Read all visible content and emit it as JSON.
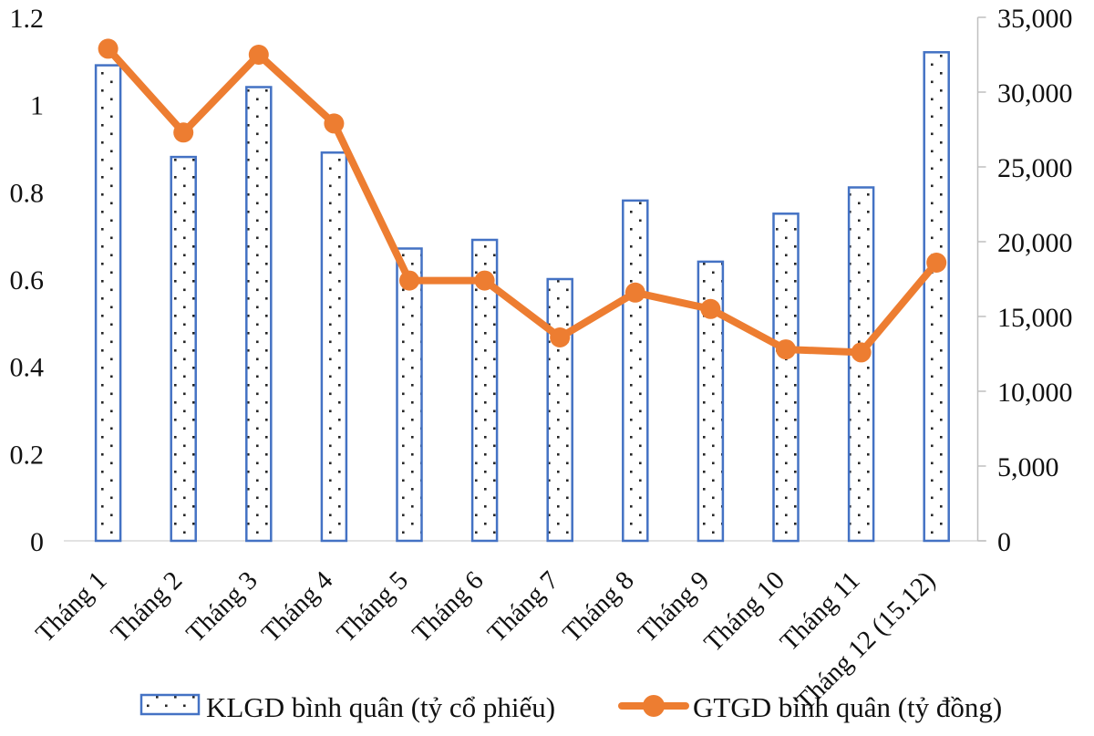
{
  "chart_data": {
    "type": "bar+line",
    "categories": [
      "Tháng 1",
      "Tháng 2",
      "Tháng 3",
      "Tháng 4",
      "Tháng 5",
      "Tháng 6",
      "Tháng 7",
      "Tháng 8",
      "Tháng 9",
      "Tháng 10",
      "Tháng 11",
      "Tháng 12 (15.12)"
    ],
    "series": [
      {
        "name": "KLGD bình quân (tỷ cổ phiếu)",
        "type": "bar",
        "axis": "left",
        "values": [
          1.09,
          0.88,
          1.04,
          0.89,
          0.67,
          0.69,
          0.6,
          0.78,
          0.64,
          0.75,
          0.81,
          1.12
        ]
      },
      {
        "name": "GTGD bình quân (tỷ đồng)",
        "type": "line",
        "axis": "right",
        "values": [
          32900,
          27300,
          32500,
          27900,
          17400,
          17400,
          13600,
          16600,
          15500,
          12800,
          12600,
          18600
        ]
      }
    ],
    "left_axis": {
      "min": 0,
      "max": 1.2,
      "ticks_top_to_bottom": [
        "1.2",
        "1",
        "0.8",
        "0.6",
        "0.4",
        "0.2",
        "0"
      ]
    },
    "right_axis": {
      "min": 0,
      "max": 35000,
      "ticks_top_to_bottom": [
        "35,000",
        "30,000",
        "25,000",
        "20,000",
        "15,000",
        "10,000",
        "5,000",
        "0"
      ]
    },
    "legend_position": "bottom",
    "grid": false,
    "colors": {
      "bar_border": "#4472C4",
      "bar_dot": "#262626",
      "line": "#ED7D31",
      "right_axis_line": "#BFBFBF",
      "baseline": "#D9D9D9",
      "text": "#111111"
    }
  }
}
